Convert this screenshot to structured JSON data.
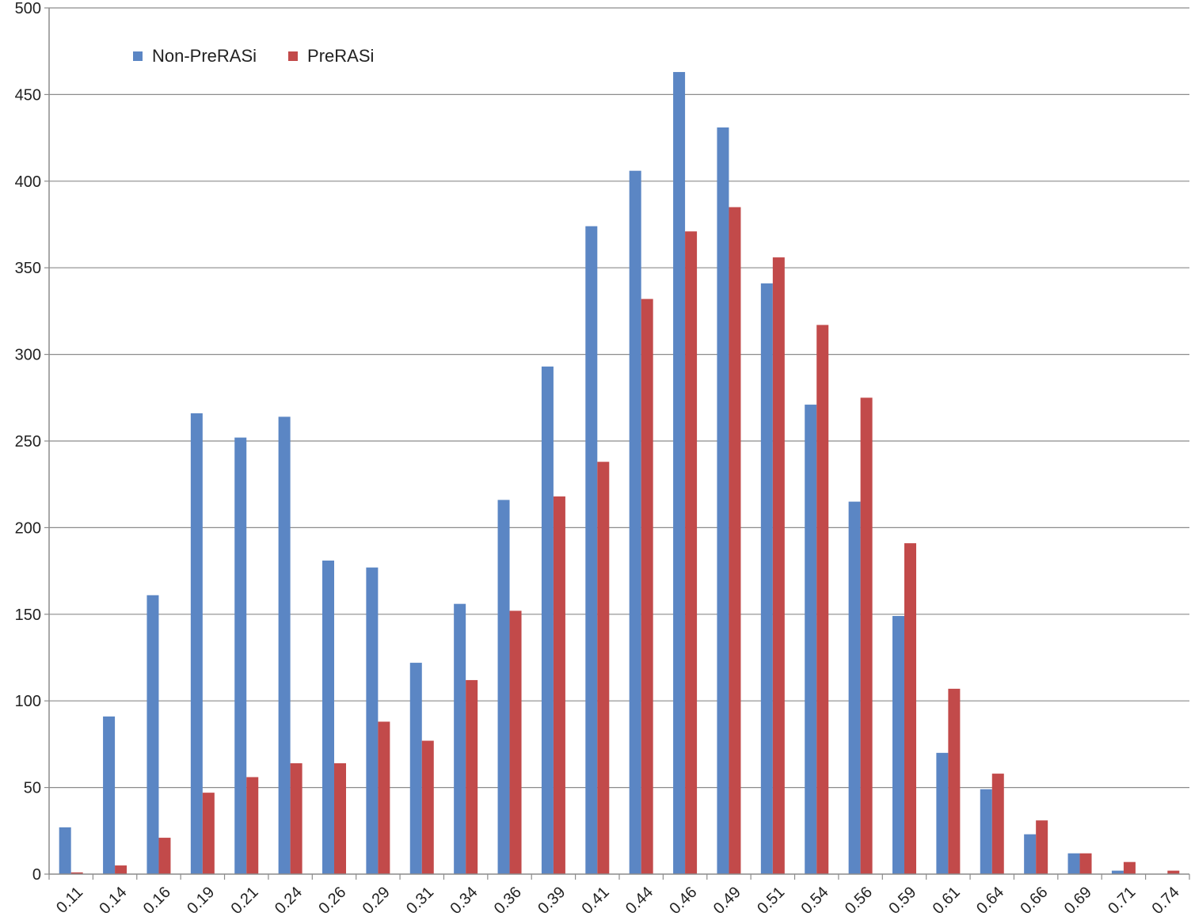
{
  "chart_data": {
    "type": "bar",
    "title": "",
    "xlabel": "",
    "ylabel": "",
    "ylim": [
      0,
      500
    ],
    "yticks": [
      0,
      50,
      100,
      150,
      200,
      250,
      300,
      350,
      400,
      450,
      500
    ],
    "grid": true,
    "legend_position": "top-left",
    "categories": [
      "0.11",
      "0.14",
      "0.16",
      "0.19",
      "0.21",
      "0.24",
      "0.26",
      "0.29",
      "0.31",
      "0.34",
      "0.36",
      "0.39",
      "0.41",
      "0.44",
      "0.46",
      "0.49",
      "0.51",
      "0.54",
      "0.56",
      "0.59",
      "0.61",
      "0.64",
      "0.66",
      "0.69",
      "0.71",
      "0.74"
    ],
    "series": [
      {
        "name": "Non-PreRASi",
        "color": "#5b86c4",
        "values": [
          27,
          91,
          161,
          266,
          252,
          264,
          181,
          177,
          122,
          156,
          216,
          293,
          374,
          406,
          463,
          431,
          341,
          271,
          215,
          149,
          70,
          49,
          23,
          12,
          2,
          0
        ]
      },
      {
        "name": "PreRASi",
        "color": "#c24a4a",
        "values": [
          1,
          5,
          21,
          47,
          56,
          64,
          64,
          88,
          77,
          112,
          152,
          218,
          238,
          332,
          371,
          385,
          356,
          317,
          275,
          191,
          107,
          58,
          31,
          12,
          7,
          2
        ]
      }
    ]
  }
}
